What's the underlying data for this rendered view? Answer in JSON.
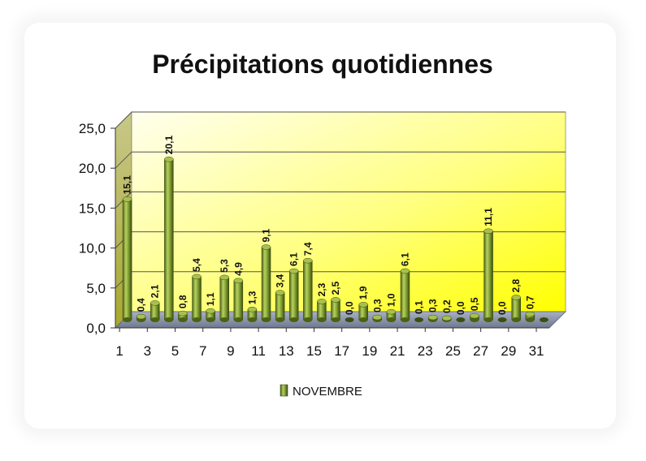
{
  "chart_data": {
    "type": "bar",
    "title": "Précipitations quotidiennes",
    "xlabel": "",
    "ylabel": "",
    "ylim": [
      0,
      25
    ],
    "y_ticks": [
      "0,0",
      "5,0",
      "10,0",
      "15,0",
      "20,0",
      "25,0"
    ],
    "x_tick_labels": [
      "1",
      "3",
      "5",
      "7",
      "9",
      "11",
      "13",
      "15",
      "17",
      "19",
      "21",
      "23",
      "25",
      "27",
      "29",
      "31"
    ],
    "categories": [
      "1",
      "2",
      "3",
      "4",
      "5",
      "6",
      "7",
      "8",
      "9",
      "10",
      "11",
      "12",
      "13",
      "14",
      "15",
      "16",
      "17",
      "18",
      "19",
      "20",
      "21",
      "22",
      "23",
      "24",
      "25",
      "26",
      "27",
      "28",
      "29",
      "30",
      "31"
    ],
    "series": [
      {
        "name": "NOVEMBRE",
        "values": [
          15.1,
          0.4,
          2.1,
          20.1,
          0.8,
          5.4,
          1.1,
          5.3,
          4.9,
          1.3,
          9.1,
          3.4,
          6.1,
          7.4,
          2.3,
          2.5,
          0.0,
          1.9,
          0.3,
          1.0,
          6.1,
          0.1,
          0.3,
          0.2,
          0.0,
          0.5,
          11.1,
          0.0,
          2.8,
          0.7,
          0.0
        ],
        "data_labels": [
          "15,1",
          "0,4",
          "2,1",
          "20,1",
          "0,8",
          "5,4",
          "1,1",
          "5,3",
          "4,9",
          "1,3",
          "9,1",
          "3,4",
          "6,1",
          "7,4",
          "2,3",
          "2,5",
          "0,0",
          "1,9",
          "0,3",
          "1,0",
          "6,1",
          "0,1",
          "0,3",
          "0,2",
          "0,0",
          "0,5",
          "11,1",
          "0,0",
          "2,8",
          "0,7",
          ""
        ]
      }
    ],
    "grid": true,
    "legend_position": "bottom",
    "colors": {
      "bar": "#7a9a2a",
      "bar_light": "#c9dd78",
      "bar_dark": "#3e5210",
      "wall_top": "#ffffe8",
      "wall_bottom": "#ffff00",
      "floor": "#8c96a8"
    }
  }
}
